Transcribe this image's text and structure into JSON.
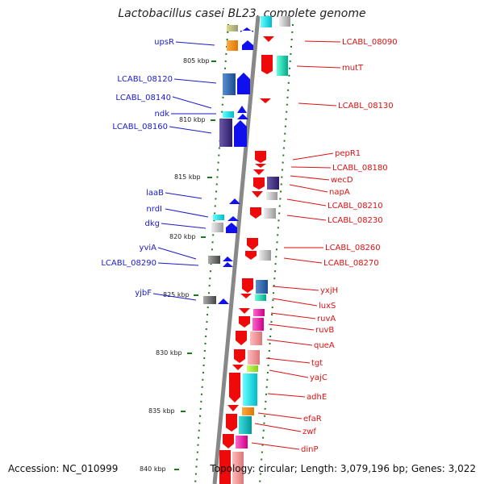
{
  "title": "Lactobacillus casei BL23, complete genome",
  "footer": {
    "accession": "Accession: NC_010999",
    "topology": "Topology: circular; Length: 3,079,196 bp; Genes: 3,022"
  },
  "scale_labels": [
    "805 kbp",
    "810 kbp",
    "815 kbp",
    "820 kbp",
    "825 kbp",
    "830 kbp",
    "835 kbp",
    "840 kbp"
  ],
  "left_genes": [
    "upsR",
    "LCABL_08120",
    "LCABL_08140",
    "ndk",
    "LCABL_08160",
    "laaB",
    "nrdI",
    "dkg",
    "yviA",
    "LCABL_08290",
    "yjbF"
  ],
  "right_genes": [
    "LCABL_08090",
    "mutT",
    "LCABL_08130",
    "pepR1",
    "LCABL_08180",
    "wecD",
    "napA",
    "LCABL_08210",
    "LCABL_08230",
    "LCABL_08260",
    "LCABL_08270",
    "yxjH",
    "luxS",
    "ruvA",
    "ruvB",
    "queA",
    "tgt",
    "yajC",
    "adhE",
    "efaR",
    "zwf",
    "dinP"
  ],
  "colors": {
    "forward_strand": "#1010ee",
    "reverse_strand": "#ee0a0a",
    "left_label": "#1a1acd",
    "right_label": "#dd1111",
    "tick": "#1a7a1a",
    "axis": "#888888"
  }
}
